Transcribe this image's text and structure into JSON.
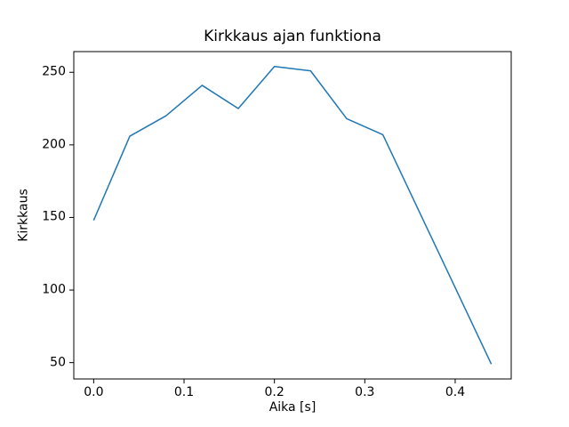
{
  "figure": {
    "background": "#ffffff",
    "text_color": "#000000"
  },
  "chart_data": {
    "type": "line",
    "title": "Kirkkaus ajan funktiona",
    "xlabel": "Aika [s]",
    "ylabel": "Kirkkaus",
    "x": [
      0.0,
      0.04,
      0.08,
      0.12,
      0.16,
      0.2,
      0.24,
      0.28,
      0.32,
      0.44
    ],
    "y": [
      148,
      206,
      220,
      241,
      225,
      254,
      251,
      218,
      207,
      49
    ],
    "line_color": "#1f77b4",
    "xlim": [
      -0.022,
      0.462
    ],
    "ylim": [
      38.75,
      264.25
    ],
    "xticks": {
      "values": [
        0.0,
        0.1,
        0.2,
        0.3,
        0.4
      ],
      "labels": [
        "0.0",
        "0.1",
        "0.2",
        "0.3",
        "0.4"
      ]
    },
    "yticks": {
      "values": [
        50,
        100,
        150,
        200,
        250
      ],
      "labels": [
        "50",
        "100",
        "150",
        "200",
        "250"
      ]
    },
    "grid": false,
    "legend": false
  }
}
